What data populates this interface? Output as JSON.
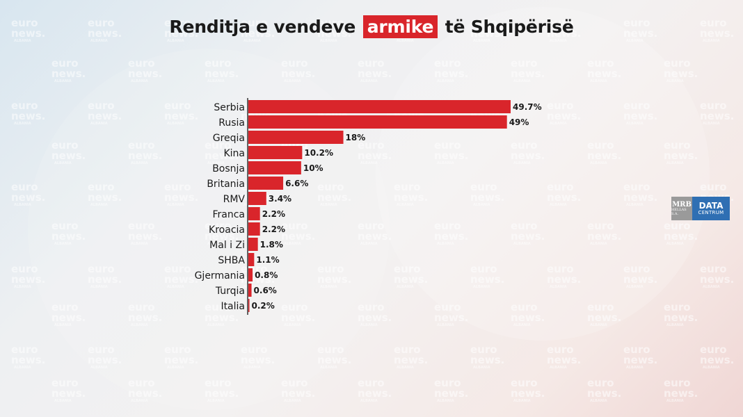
{
  "title": {
    "before": "Renditja e vendeve",
    "highlight": "armike",
    "after": "të Shqipërisë"
  },
  "watermark": {
    "line1": "euro",
    "line2": "news.",
    "sub": "ALBANIA"
  },
  "logo": {
    "mrb": "MRB",
    "mrb_sub": "HELLAS S.A.",
    "data": "DATA",
    "centrum": "CENTRUM"
  },
  "colors": {
    "bar": "#d9252b",
    "highlight_bg": "#d9252b",
    "axis": "#333333",
    "logo_blue": "#2f6fb3",
    "logo_grey": "#9a9a9a"
  },
  "chart_data": {
    "type": "bar",
    "orientation": "horizontal",
    "title": "Renditja e vendeve armike të Shqipërisë",
    "categories": [
      "Serbia",
      "Rusia",
      "Greqia",
      "Kina",
      "Bosnja",
      "Britania",
      "RMV",
      "Franca",
      "Kroacia",
      "Mal i Zi",
      "SHBA",
      "Gjermania",
      "Turqia",
      "Italia"
    ],
    "values": [
      49.7,
      49,
      18,
      10.2,
      10,
      6.6,
      3.4,
      2.2,
      2.2,
      1.8,
      1.1,
      0.8,
      0.6,
      0.2
    ],
    "value_labels": [
      "49.7%",
      "49%",
      "18%",
      "10.2%",
      "10%",
      "6.6%",
      "3.4%",
      "2.2%",
      "2.2%",
      "1.8%",
      "1.1%",
      "0.8%",
      "0.6%",
      "0.2%"
    ],
    "unit": "%",
    "xlim": [
      0,
      50
    ],
    "grid": false,
    "legend": "none"
  }
}
